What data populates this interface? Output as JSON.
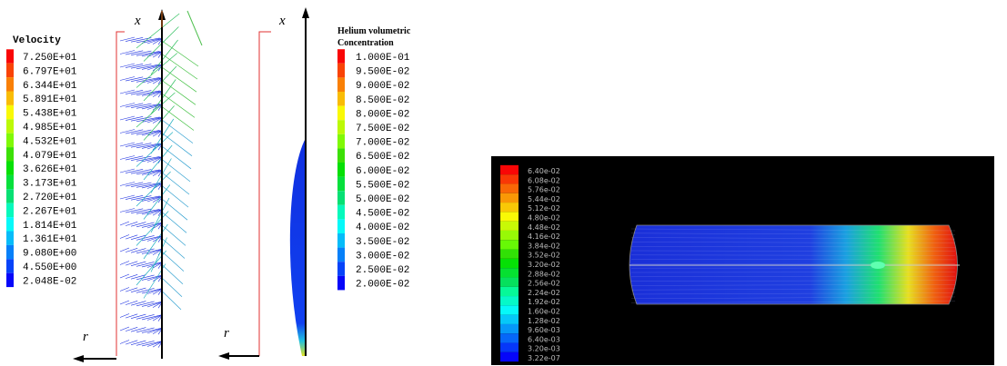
{
  "left_panel": {
    "axis_x": "x",
    "axis_r": "r",
    "legend": {
      "title": "Velocity",
      "labels": [
        "7.250E+01",
        "6.797E+01",
        "6.344E+01",
        "5.891E+01",
        "5.438E+01",
        "4.985E+01",
        "4.532E+01",
        "4.079E+01",
        "3.626E+01",
        "3.173E+01",
        "2.720E+01",
        "2.267E+01",
        "1.814E+01",
        "1.361E+01",
        "9.080E+00",
        "4.550E+00",
        "2.048E-02"
      ]
    }
  },
  "middle_panel": {
    "axis_x": "x",
    "axis_r": "r",
    "legend": {
      "title_lines": [
        "Helium volumetric",
        "Concentration"
      ],
      "labels": [
        "1.000E-01",
        "9.500E-02",
        "9.000E-02",
        "8.500E-02",
        "8.000E-02",
        "7.500E-02",
        "7.000E-02",
        "6.500E-02",
        "6.000E-02",
        "5.500E-02",
        "5.000E-02",
        "4.500E-02",
        "4.000E-02",
        "3.500E-02",
        "3.000E-02",
        "2.500E-02",
        "2.000E-02"
      ]
    }
  },
  "right_panel": {
    "legend": {
      "labels": [
        "6.40e-02",
        "6.08e-02",
        "5.76e-02",
        "5.44e-02",
        "5.12e-02",
        "4.80e-02",
        "4.48e-02",
        "4.16e-02",
        "3.84e-02",
        "3.52e-02",
        "3.20e-02",
        "2.88e-02",
        "2.56e-02",
        "2.24e-02",
        "1.92e-02",
        "1.60e-02",
        "1.28e-02",
        "9.60e-03",
        "6.40e-03",
        "3.20e-03",
        "3.22e-07"
      ]
    }
  }
}
